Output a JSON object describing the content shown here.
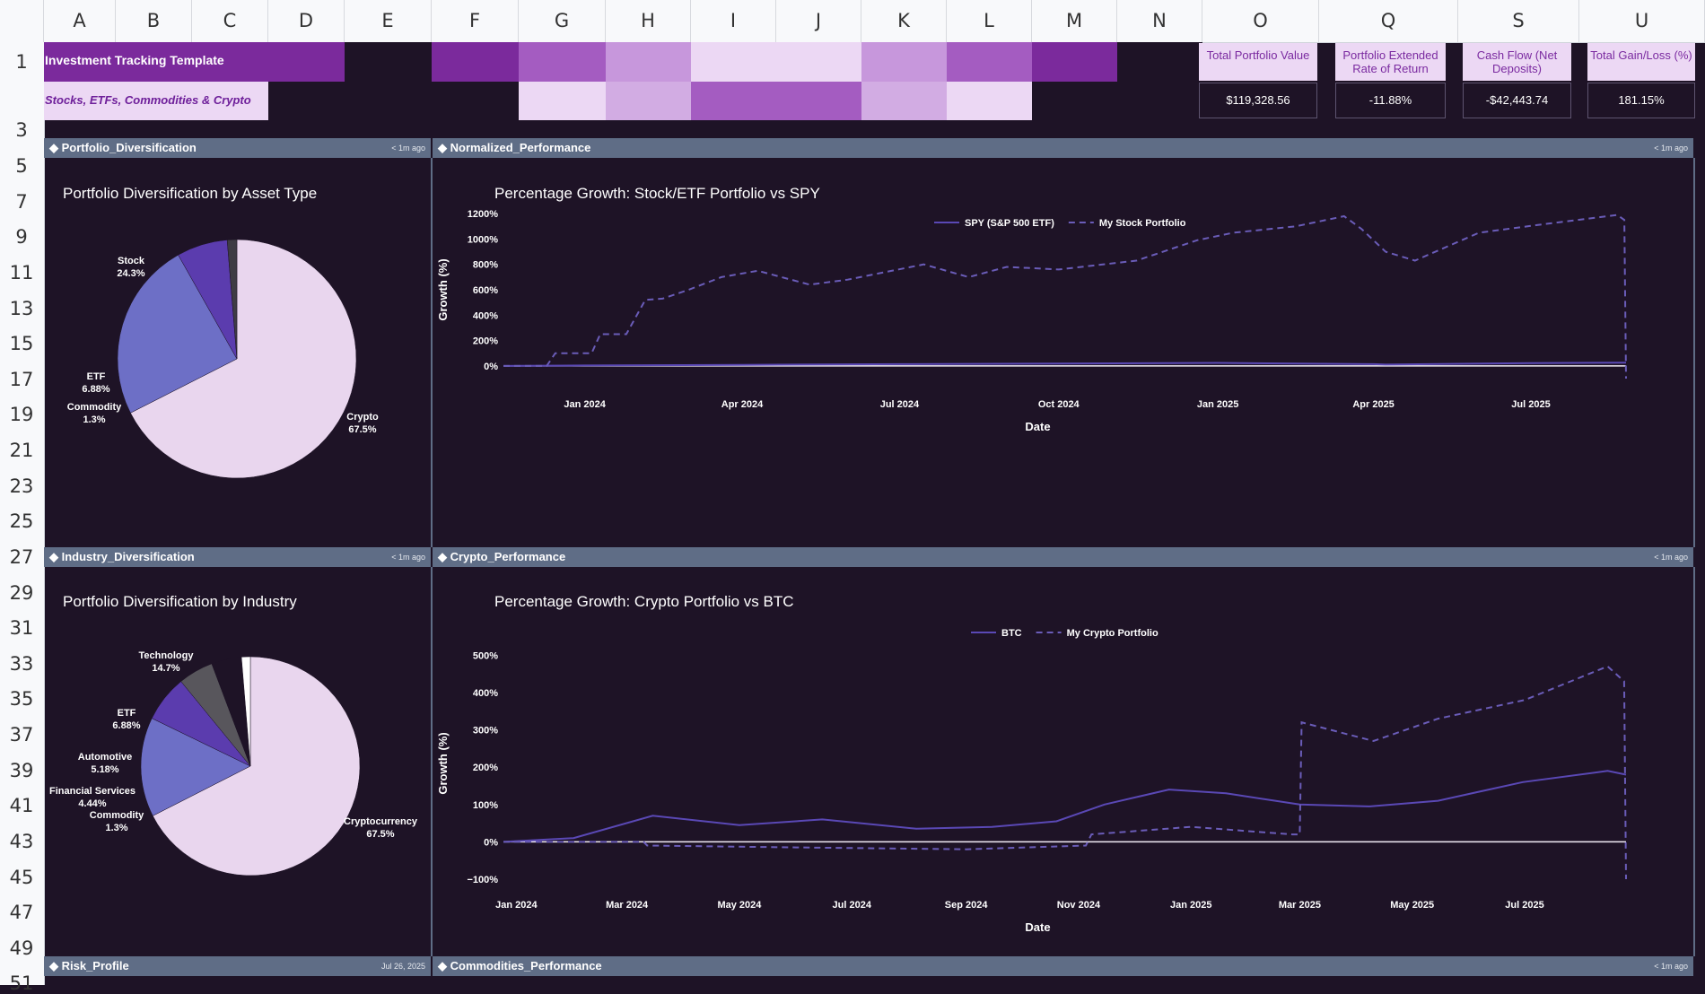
{
  "columns": [
    "A",
    "B",
    "C",
    "D",
    "E",
    "F",
    "G",
    "H",
    "I",
    "J",
    "K",
    "L",
    "M",
    "N",
    "O",
    "Q",
    "S",
    "U"
  ],
  "rows": [
    "1",
    "3",
    "5",
    "7",
    "9",
    "11",
    "13",
    "15",
    "17",
    "19",
    "21",
    "23",
    "25",
    "27",
    "29",
    "31",
    "33",
    "35",
    "37",
    "39",
    "41",
    "43",
    "45",
    "47",
    "49",
    "51"
  ],
  "header": {
    "title": "Investment Tracking Template",
    "subtitle": "Stocks, ETFs, Commodities & Crypto"
  },
  "kpis": [
    {
      "label": "Total Portfolio Value",
      "value": "$119,328.56"
    },
    {
      "label": "Portfolio Extended Rate of Return",
      "value": "-11.88%"
    },
    {
      "label": "Cash Flow (Net Deposits)",
      "value": "-$42,443.74"
    },
    {
      "label": "Total Gain/Loss (%)",
      "value": "181.15%"
    }
  ],
  "colors": {
    "band_row1": [
      "#7b2a9c",
      "#7b2a9c",
      "#7b2a9c",
      "#7b2a9c",
      "#1e1326",
      "#7b2a9c",
      "#a45cc1",
      "#c797dc",
      "#ecd8f4",
      "#ecd8f4",
      "#c797dc",
      "#a45cc1",
      "#7b2a9c",
      "#1e1326"
    ],
    "band_row2": [
      "#ecd8f4",
      "#ecd8f4",
      "#ecd8f4",
      "#1e1326",
      "#1e1326",
      "#1e1326",
      "#ecd8f4",
      "#d2ace3",
      "#a45cc1",
      "#a45cc1",
      "#d2ace3",
      "#ecd8f4",
      "#1e1326",
      "#1e1326"
    ],
    "panel_header": "#5f6d86",
    "background": "#1e1326"
  },
  "panels": {
    "p1": {
      "name": "Portfolio_Diversification",
      "time": "< 1m ago"
    },
    "p2": {
      "name": "Normalized_Performance",
      "time": "< 1m ago"
    },
    "p3": {
      "name": "Industry_Diversification",
      "time": "< 1m ago"
    },
    "p4": {
      "name": "Crypto_Performance",
      "time": "< 1m ago"
    },
    "p5": {
      "name": "Risk_Profile",
      "time": "Jul 26, 2025"
    },
    "p6": {
      "name": "Commodities_Performance",
      "time": "< 1m ago"
    }
  },
  "chart_data": [
    {
      "type": "pie",
      "title": "Portfolio Diversification by Asset Type",
      "slices": [
        {
          "label": "Crypto",
          "value": 67.5,
          "pct": "67.5%",
          "color": "#e9d6ee"
        },
        {
          "label": "Stock",
          "value": 24.3,
          "pct": "24.3%",
          "color": "#6d6fc6"
        },
        {
          "label": "ETF",
          "value": 6.88,
          "pct": "6.88%",
          "color": "#5b3cae"
        },
        {
          "label": "Commodity",
          "value": 1.3,
          "pct": "1.3%",
          "color": "#3e3c44"
        }
      ]
    },
    {
      "type": "pie",
      "title": "Portfolio Diversification by Industry",
      "slices": [
        {
          "label": "Cryptocurrency",
          "value": 67.5,
          "pct": "67.5%",
          "color": "#e9d6ee"
        },
        {
          "label": "Technology",
          "value": 14.7,
          "pct": "14.7%",
          "color": "#6d6fc6"
        },
        {
          "label": "ETF",
          "value": 6.88,
          "pct": "6.88%",
          "color": "#5b3cae"
        },
        {
          "label": "Automotive",
          "value": 5.18,
          "pct": "5.18%",
          "color": "#58565c"
        },
        {
          "label": "Financial Services",
          "value": 4.44,
          "pct": "4.44%",
          "color": "#1e1326"
        },
        {
          "label": "Commodity",
          "value": 1.3,
          "pct": "1.3%",
          "color": "#ffffff"
        }
      ]
    },
    {
      "type": "line",
      "title": "Percentage Growth: Stock/ETF Portfolio vs SPY",
      "xlabel": "Date",
      "ylabel": "Growth (%)",
      "ylim": [
        -100,
        1300
      ],
      "xlim": [
        "2023-11-15",
        "2025-08-25"
      ],
      "x_ticks": [
        "Jan 2024",
        "Apr 2024",
        "Jul 2024",
        "Oct 2024",
        "Jan 2025",
        "Apr 2025",
        "Jul 2025"
      ],
      "y_ticks": [
        "0%",
        "200%",
        "400%",
        "600%",
        "800%",
        "1000%",
        "1200%"
      ],
      "legend": "top-center",
      "series": [
        {
          "name": "SPY (S&P 500 ETF)",
          "style": "solid",
          "color": "#5a48b5",
          "x": [
            "2023-11-15",
            "2024-01-01",
            "2024-04-01",
            "2024-07-01",
            "2024-10-01",
            "2025-01-01",
            "2025-04-01",
            "2025-04-08",
            "2025-07-01",
            "2025-08-25"
          ],
          "y": [
            0,
            3,
            8,
            14,
            18,
            24,
            14,
            10,
            22,
            26
          ]
        },
        {
          "name": "My Stock Portfolio",
          "style": "dashed",
          "color": "#6a5cb8",
          "x": [
            "2023-11-15",
            "2023-12-10",
            "2023-12-15",
            "2024-01-05",
            "2024-01-10",
            "2024-01-25",
            "2024-02-05",
            "2024-02-15",
            "2024-03-01",
            "2024-03-20",
            "2024-04-10",
            "2024-05-10",
            "2024-06-01",
            "2024-07-15",
            "2024-08-10",
            "2024-09-01",
            "2024-10-01",
            "2024-11-15",
            "2024-12-20",
            "2025-01-10",
            "2025-02-15",
            "2025-03-15",
            "2025-03-25",
            "2025-04-08",
            "2025-04-25",
            "2025-06-01",
            "2025-07-10",
            "2025-08-20",
            "2025-08-24",
            "2025-08-25"
          ],
          "y": [
            0,
            0,
            100,
            100,
            250,
            250,
            520,
            530,
            600,
            700,
            750,
            640,
            680,
            800,
            700,
            780,
            760,
            830,
            990,
            1050,
            1100,
            1180,
            1080,
            900,
            830,
            1050,
            1120,
            1190,
            1150,
            -100
          ]
        }
      ]
    },
    {
      "type": "line",
      "title": "Percentage Growth: Crypto Portfolio vs BTC",
      "xlabel": "Date",
      "ylabel": "Growth (%)",
      "ylim": [
        -100,
        520
      ],
      "xlim": [
        "2023-12-25",
        "2025-08-25"
      ],
      "x_ticks": [
        "Jan 2024",
        "Mar 2024",
        "May 2024",
        "Jul 2024",
        "Sep 2024",
        "Nov 2024",
        "Jan 2025",
        "Mar 2025",
        "May 2025",
        "Jul 2025"
      ],
      "y_ticks": [
        "−100%",
        "0%",
        "100%",
        "200%",
        "300%",
        "400%",
        "500%"
      ],
      "legend": "top-center",
      "series": [
        {
          "name": "BTC",
          "style": "solid",
          "color": "#5a48b5",
          "x": [
            "2023-12-25",
            "2024-02-01",
            "2024-03-15",
            "2024-05-01",
            "2024-06-15",
            "2024-08-05",
            "2024-09-15",
            "2024-10-20",
            "2024-11-15",
            "2024-12-20",
            "2025-01-20",
            "2025-03-01",
            "2025-04-08",
            "2025-05-15",
            "2025-06-30",
            "2025-08-15",
            "2025-08-25"
          ],
          "y": [
            0,
            10,
            70,
            45,
            60,
            35,
            40,
            55,
            100,
            140,
            130,
            100,
            95,
            110,
            160,
            190,
            180
          ]
        },
        {
          "name": "My Crypto Portfolio",
          "style": "dashed",
          "color": "#6a5cb8",
          "x": [
            "2023-12-25",
            "2024-03-10",
            "2024-03-12",
            "2024-06-01",
            "2024-09-01",
            "2024-11-05",
            "2024-11-08",
            "2025-01-01",
            "2025-02-25",
            "2025-03-01",
            "2025-03-02",
            "2025-04-10",
            "2025-05-15",
            "2025-07-01",
            "2025-08-15",
            "2025-08-24",
            "2025-08-25"
          ],
          "y": [
            0,
            0,
            -10,
            -15,
            -20,
            -10,
            20,
            40,
            20,
            20,
            320,
            270,
            330,
            380,
            470,
            430,
            -100
          ]
        }
      ]
    }
  ]
}
